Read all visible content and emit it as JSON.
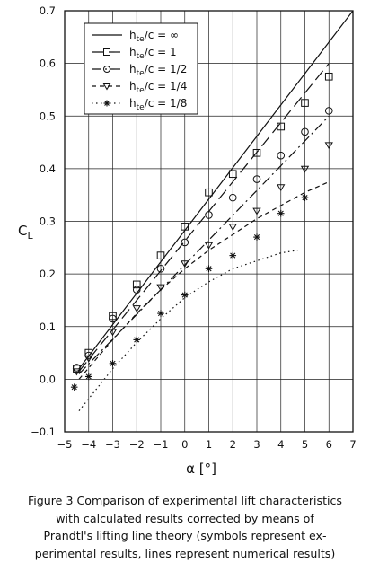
{
  "chart_data": {
    "type": "line",
    "xlabel": "α [°]",
    "ylabel_main": "C",
    "ylabel_sub": "L",
    "xlim": [
      -5,
      7
    ],
    "ylim": [
      -0.1,
      0.7
    ],
    "x_ticks": [
      "−5",
      "−4",
      "−3",
      "−2",
      "−1",
      "0",
      "1",
      "2",
      "3",
      "4",
      "5",
      "6",
      "7"
    ],
    "y_ticks": [
      "−0.1",
      "0.0",
      "0.1",
      "0.2",
      "0.3",
      "0.4",
      "0.5",
      "0.6",
      "0.7"
    ],
    "grid": true,
    "legend_position": "top-left",
    "series": [
      {
        "name_prefix": "h",
        "name_sub": "te",
        "name_value": "/c = ∞",
        "line": "solid",
        "marker": "none",
        "lines": [
          [
            -4.4,
            0.02
          ],
          [
            7,
            0.7
          ]
        ],
        "points": []
      },
      {
        "name_prefix": "h",
        "name_sub": "te",
        "name_value": "/c = 1",
        "line": "long-dash",
        "marker": "square",
        "lines": [
          [
            -4.4,
            0.015
          ],
          [
            6,
            0.6
          ]
        ],
        "points": [
          [
            -4.5,
            0.02
          ],
          [
            -4,
            0.05
          ],
          [
            -3,
            0.12
          ],
          [
            -2,
            0.18
          ],
          [
            -1,
            0.235
          ],
          [
            0,
            0.29
          ],
          [
            1,
            0.355
          ],
          [
            2,
            0.39
          ],
          [
            3,
            0.43
          ],
          [
            4,
            0.48
          ],
          [
            5,
            0.525
          ],
          [
            6,
            0.575
          ]
        ]
      },
      {
        "name_prefix": "h",
        "name_sub": "te",
        "name_value": "/c = 1/2",
        "line": "dash-dot",
        "marker": "circle",
        "lines": [
          [
            -4.4,
            0.01
          ],
          [
            6,
            0.5
          ]
        ],
        "points": [
          [
            -4.5,
            0.022
          ],
          [
            -4,
            0.045
          ],
          [
            -3,
            0.115
          ],
          [
            -2,
            0.17
          ],
          [
            -1,
            0.21
          ],
          [
            0,
            0.26
          ],
          [
            1,
            0.312
          ],
          [
            2,
            0.345
          ],
          [
            3,
            0.38
          ],
          [
            4,
            0.425
          ],
          [
            5,
            0.47
          ],
          [
            6,
            0.51
          ]
        ]
      },
      {
        "name_prefix": "h",
        "name_sub": "te",
        "name_value": "/c = 1/4",
        "line": "short-dash",
        "marker": "triangle-down",
        "lines": [
          [
            -4.4,
            0.0
          ],
          [
            -3,
            0.075
          ],
          [
            -2,
            0.125
          ],
          [
            -1,
            0.17
          ],
          [
            0,
            0.21
          ],
          [
            1,
            0.245
          ],
          [
            2,
            0.275
          ],
          [
            3,
            0.305
          ],
          [
            4,
            0.33
          ],
          [
            5,
            0.355
          ],
          [
            6,
            0.375
          ]
        ],
        "points": [
          [
            -4.5,
            0.015
          ],
          [
            -4,
            0.04
          ],
          [
            -3,
            0.09
          ],
          [
            -2,
            0.135
          ],
          [
            -1,
            0.175
          ],
          [
            0,
            0.22
          ],
          [
            1,
            0.255
          ],
          [
            2,
            0.29
          ],
          [
            3,
            0.32
          ],
          [
            4,
            0.365
          ],
          [
            5,
            0.4
          ],
          [
            6,
            0.445
          ]
        ]
      },
      {
        "name_prefix": "h",
        "name_sub": "te",
        "name_value": "/c = 1/8",
        "line": "dotted",
        "marker": "asterisk",
        "lines": [
          [
            -4.4,
            -0.06
          ],
          [
            -3,
            0.02
          ],
          [
            -2,
            0.07
          ],
          [
            -1,
            0.115
          ],
          [
            0,
            0.155
          ],
          [
            1,
            0.185
          ],
          [
            2,
            0.21
          ],
          [
            3,
            0.225
          ],
          [
            4,
            0.24
          ],
          [
            4.7,
            0.245
          ]
        ],
        "points": [
          [
            -4.6,
            -0.015
          ],
          [
            -4,
            0.005
          ],
          [
            -3,
            0.03
          ],
          [
            -2,
            0.075
          ],
          [
            -1,
            0.125
          ],
          [
            0,
            0.16
          ],
          [
            1,
            0.21
          ],
          [
            2,
            0.235
          ],
          [
            3,
            0.27
          ],
          [
            4,
            0.315
          ],
          [
            5,
            0.345
          ]
        ]
      }
    ]
  },
  "caption": {
    "lines": [
      "Figure 3 Comparison of experimental lift characteristics",
      "with calculated results corrected by means of",
      "Prandtl's lifting line theory (symbols represent ex-",
      "perimental results, lines represent numerical results)"
    ]
  }
}
